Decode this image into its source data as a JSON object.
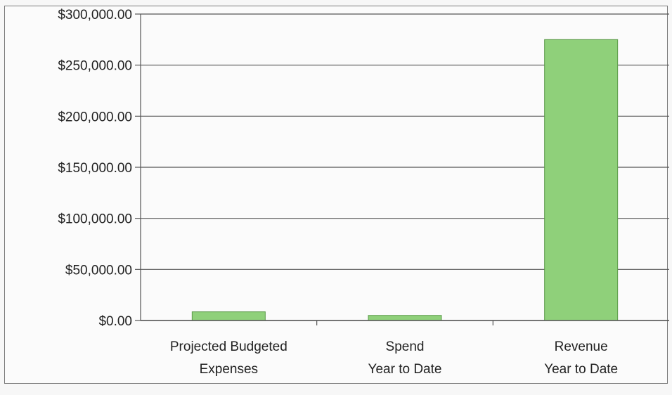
{
  "chart_data": {
    "type": "bar",
    "categories": [
      [
        "Projected Budgeted",
        "Expenses"
      ],
      [
        "Spend",
        "Year to Date"
      ],
      [
        "Revenue",
        "Year to Date"
      ]
    ],
    "values": [
      8500,
      5000,
      275000
    ],
    "yticks": [
      "$0.00",
      "$50,000.00",
      "$100,000.00",
      "$150,000.00",
      "$200,000.00",
      "$250,000.00",
      "$300,000.00"
    ],
    "ylim": [
      0,
      300000
    ],
    "grid": true,
    "bar_color": "#8fd07a",
    "bar_stroke": "#5a9a48",
    "title": "",
    "xlabel": "",
    "ylabel": ""
  }
}
